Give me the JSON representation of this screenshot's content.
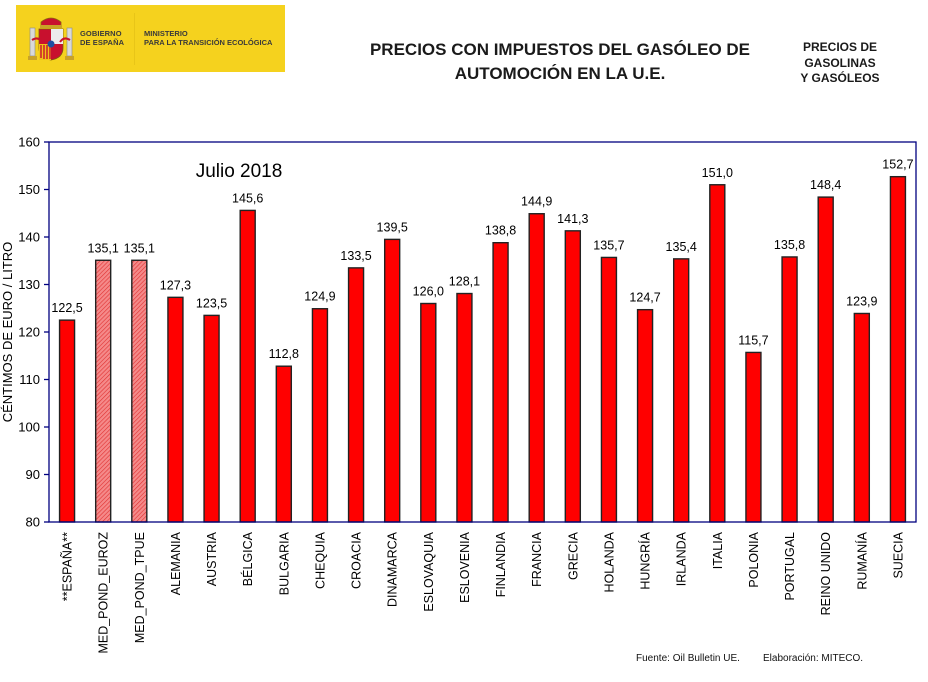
{
  "header": {
    "gov_line1": "GOBIERNO",
    "gov_line2": "DE ESPAÑA",
    "ministry_line1": "MINISTERIO",
    "ministry_line2": "PARA LA TRANSICIÓN ECOLÓGICA",
    "title_line1": "PRECIOS CON IMPUESTOS DEL GASÓLEO DE",
    "title_line2": "AUTOMOCIÓN EN LA U.E.",
    "side_line1": "PRECIOS DE",
    "side_line2": "GASOLINAS",
    "side_line3": "Y GASÓLEOS",
    "banner_color": "#f5d21e"
  },
  "footer": {
    "source": "Fuente: Oil Bulletin UE.",
    "elaboration": "Elaboración: MITECO."
  },
  "chart_data": {
    "type": "bar",
    "title": "Julio 2018",
    "xlabel": "",
    "ylabel": "CÉNTIMOS DE EURO / LITRO",
    "ylim": [
      80,
      160
    ],
    "yticks": [
      80,
      90,
      100,
      110,
      120,
      130,
      140,
      150,
      160
    ],
    "grid": false,
    "categories": [
      "**ESPAÑA**",
      "MED_POND_EUROZ",
      "MED_POND_TPUE",
      "ALEMANIA",
      "AUSTRIA",
      "BÉLGICA",
      "BULGARIA",
      "CHEQUIA",
      "CROACIA",
      "DINAMARCA",
      "ESLOVAQUIA",
      "ESLOVENIA",
      "FINLANDIA",
      "FRANCIA",
      "GRECIA",
      "HOLANDA",
      "HUNGRÍA",
      "IRLANDA",
      "ITALIA",
      "POLONIA",
      "PORTUGAL",
      "REINO UNIDO",
      "RUMANÍA",
      "SUECIA"
    ],
    "values": [
      122.5,
      135.1,
      135.1,
      127.3,
      123.5,
      145.6,
      112.8,
      124.9,
      133.5,
      139.5,
      126.0,
      128.1,
      138.8,
      144.9,
      141.3,
      135.7,
      124.7,
      135.4,
      151.0,
      115.7,
      135.8,
      148.4,
      123.9,
      152.7
    ],
    "data_labels": [
      "122,5",
      "135,1",
      "135,1",
      "127,3",
      "123,5",
      "145,6",
      "112,8",
      "124,9",
      "133,5",
      "139,5",
      "126,0",
      "128,1",
      "138,8",
      "144,9",
      "141,3",
      "135,7",
      "124,7",
      "135,4",
      "151,0",
      "115,7",
      "135,8",
      "148,4",
      "123,9",
      "152,7"
    ],
    "hatched": [
      false,
      true,
      true,
      false,
      false,
      false,
      false,
      false,
      false,
      false,
      false,
      false,
      false,
      false,
      false,
      false,
      false,
      false,
      false,
      false,
      false,
      false,
      false,
      false
    ],
    "colors": {
      "bar": "#ff0000",
      "hatched_bar": "#f07070",
      "axis": "#000080",
      "bar_edge": "#222222"
    },
    "legend": "none"
  }
}
